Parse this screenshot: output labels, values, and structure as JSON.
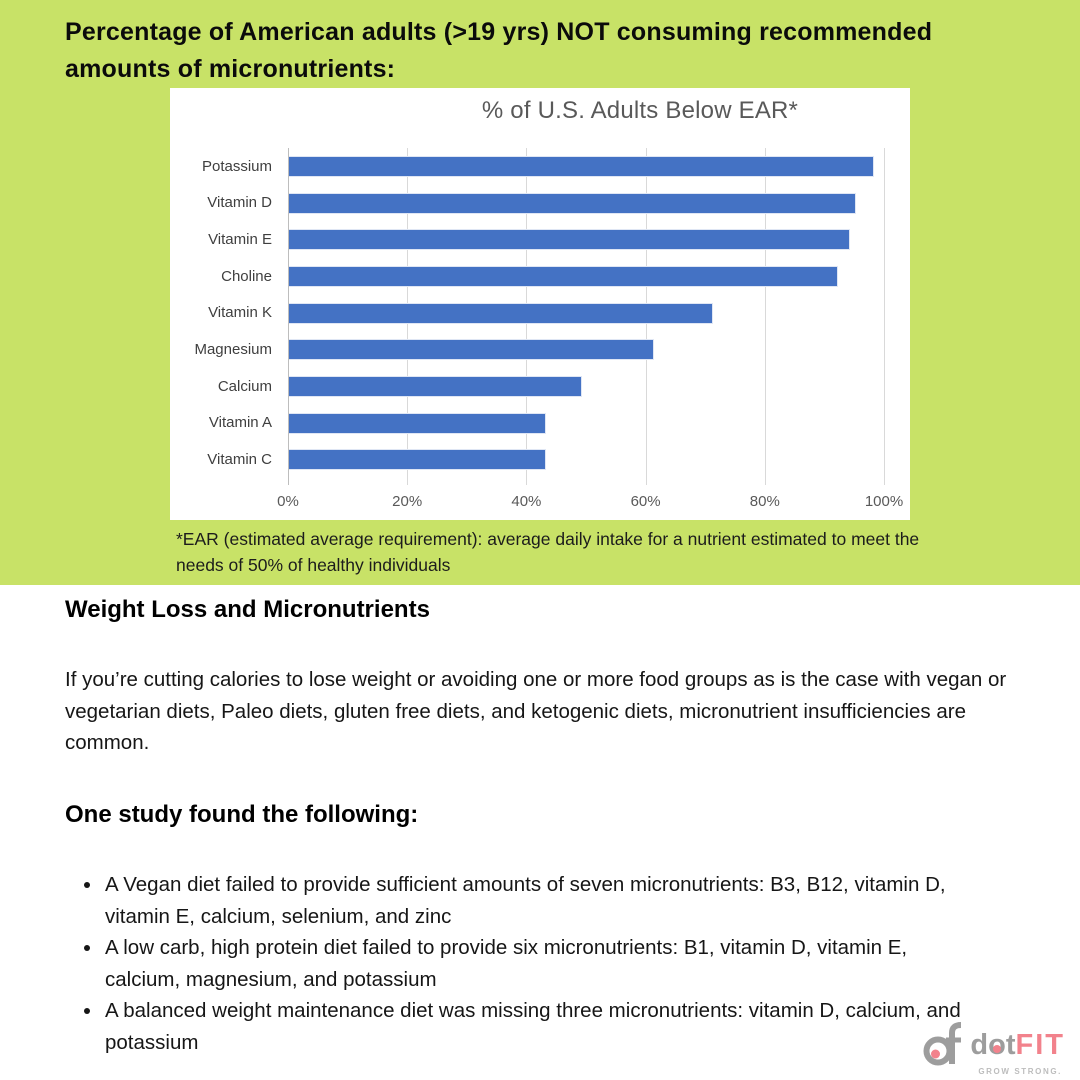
{
  "header": {
    "title_lines": [
      "Percentage of American adults (>19 yrs) NOT consuming recommended",
      "amounts of micronutrients:"
    ]
  },
  "chart_data": {
    "type": "bar",
    "orientation": "horizontal",
    "title": "% of U.S. Adults Below EAR*",
    "categories": [
      "Potassium",
      "Vitamin D",
      "Vitamin E",
      "Choline",
      "Vitamin K",
      "Magnesium",
      "Calcium",
      "Vitamin A",
      "Vitamin C"
    ],
    "values": [
      98,
      95,
      94,
      92,
      71,
      61,
      49,
      43,
      43
    ],
    "xlabel": "",
    "ylabel": "",
    "xlim": [
      0,
      100
    ],
    "x_ticks": [
      "0%",
      "20%",
      "40%",
      "60%",
      "80%",
      "100%"
    ],
    "grid": true,
    "legend": false,
    "bar_color": "#4472c4"
  },
  "footnote": "*EAR (estimated average requirement): average daily intake for a nutrient estimated to meet the needs of 50% of healthy individuals",
  "sections": {
    "weight_loss": {
      "heading": "Weight Loss and Micronutrients",
      "paragraph": "If you’re cutting calories to lose weight or avoiding one or more food groups as is the case with vegan or vegetarian diets, Paleo diets, gluten free diets, and ketogenic diets, micronutrient insufficiencies are common."
    },
    "study": {
      "heading": "One study found the following:",
      "items": [
        "A Vegan diet failed to provide sufficient amounts of seven micronutrients: B3, B12, vitamin D, vitamin E, calcium, selenium, and zinc",
        "A low carb, high protein diet failed to provide six micronutrients: B1, vitamin D, vitamin E, calcium, magnesium, and potassium",
        "A balanced weight maintenance diet was missing three micronutrients: vitamin D, calcium, and potassium"
      ]
    }
  },
  "logo": {
    "icon": "dotfit-monogram-icon",
    "word_gray": "dot",
    "word_pink": "FIT",
    "tagline": "GROW STRONG."
  },
  "colors": {
    "background_green": "#c8e267",
    "bar_blue": "#4472c4",
    "logo_pink": "#f2828c",
    "logo_gray": "#9d9d9d",
    "chart_text_gray": "#595959"
  }
}
